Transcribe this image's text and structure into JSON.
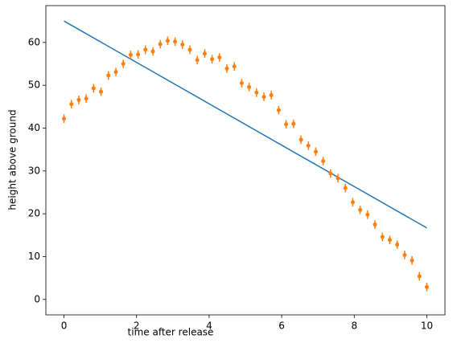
{
  "chart_data": {
    "type": "line",
    "xlabel": "time after release",
    "ylabel": "height above ground",
    "xlim": [
      -0.5,
      10.5
    ],
    "ylim": [
      -3.6,
      68.6
    ],
    "xticks": [
      0,
      2,
      4,
      6,
      8,
      10
    ],
    "yticks": [
      0,
      10,
      20,
      30,
      40,
      50,
      60
    ],
    "grid": false,
    "series": [
      {
        "style": "line",
        "color": "#1f77b4",
        "x": [
          0,
          10
        ],
        "values": [
          65,
          16.7
        ]
      },
      {
        "style": "errorbar",
        "color": "#ff7f0e",
        "x": [
          0,
          0.204,
          0.408,
          0.612,
          0.816,
          1.02,
          1.224,
          1.429,
          1.633,
          1.837,
          2.041,
          2.245,
          2.449,
          2.653,
          2.857,
          3.061,
          3.265,
          3.469,
          3.673,
          3.878,
          4.082,
          4.286,
          4.49,
          4.694,
          4.898,
          5.102,
          5.306,
          5.51,
          5.714,
          5.918,
          6.122,
          6.327,
          6.531,
          6.735,
          6.939,
          7.143,
          7.347,
          7.551,
          7.755,
          7.959,
          8.163,
          8.367,
          8.571,
          8.776,
          8.98,
          9.184,
          9.388,
          9.592,
          9.796,
          10
        ],
        "values": [
          42.2,
          45.6,
          46.6,
          46.9,
          49.3,
          48.5,
          52.3,
          53.1,
          55.0,
          57.1,
          57.2,
          58.3,
          57.9,
          59.6,
          60.4,
          60.2,
          59.5,
          58.3,
          55.9,
          57.4,
          56.1,
          56.5,
          53.9,
          54.4,
          50.5,
          49.6,
          48.3,
          47.3,
          47.7,
          44.2,
          40.9,
          41.0,
          37.3,
          35.9,
          34.5,
          32.3,
          29.4,
          28.3,
          26.0,
          22.7,
          20.9,
          19.8,
          17.5,
          14.6,
          13.9,
          12.8,
          10.4,
          9.1,
          5.4,
          2.9
        ],
        "yerr": [
          1,
          1,
          1,
          1,
          1,
          1,
          1,
          1,
          1,
          1,
          1,
          1,
          1,
          1,
          1,
          1,
          1,
          1,
          1,
          1,
          1,
          1,
          1,
          1,
          1,
          1,
          1,
          1,
          1,
          1,
          1,
          1,
          1,
          1,
          1,
          1,
          1,
          1,
          1,
          1,
          1,
          1,
          1,
          1,
          1,
          1,
          1,
          1,
          1,
          1
        ]
      }
    ]
  }
}
